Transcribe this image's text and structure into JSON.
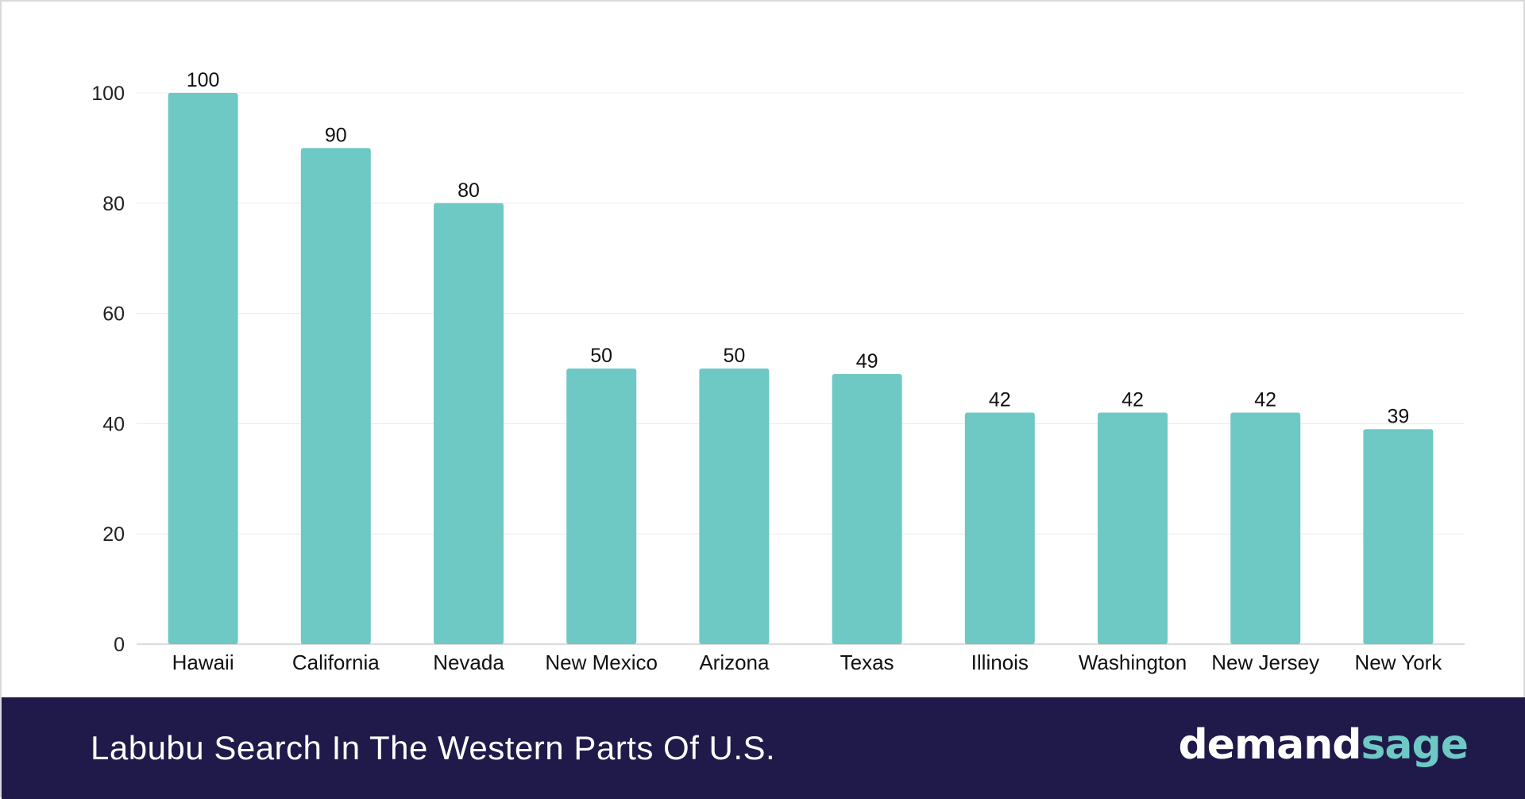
{
  "chart_data": {
    "type": "bar",
    "title": "Labubu Search In The Western Parts Of U.S.",
    "xlabel": "",
    "ylabel": "",
    "categories": [
      "Hawaii",
      "California",
      "Nevada",
      "New Mexico",
      "Arizona",
      "Texas",
      "Illinois",
      "Washington",
      "New Jersey",
      "New York"
    ],
    "values": [
      100,
      90,
      80,
      50,
      50,
      49,
      42,
      42,
      42,
      39
    ],
    "ylim": [
      0,
      100
    ],
    "yticks": [
      "0",
      "20",
      "40",
      "60",
      "80",
      "100"
    ],
    "grid": true,
    "legend": "none",
    "bar_color": "#6ec8c4"
  },
  "footer": {
    "title": "Labubu Search In The Western Parts Of U.S.",
    "brand_part1": "demand",
    "brand_part2": "sage",
    "background_color": "#201a4a",
    "brand_accent_color": "#6ec8c4"
  }
}
